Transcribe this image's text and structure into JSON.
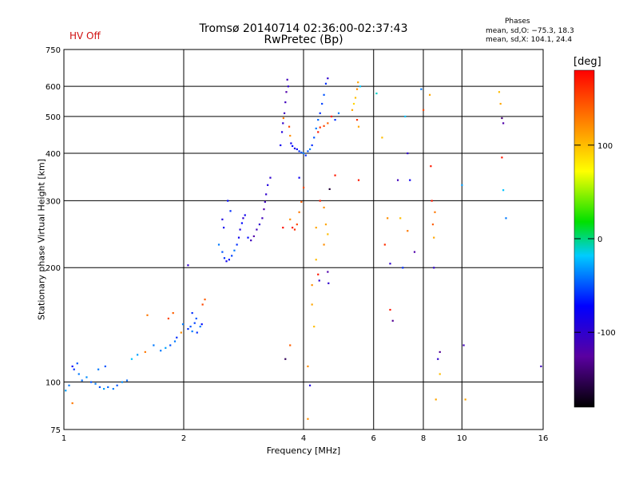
{
  "header": {
    "title_line1": "Tromsø 20140714 02:36:00-02:37:43",
    "title_line2": "RwPretec (Bp)",
    "status": "HV Off",
    "phases_heading": "Phases",
    "phases_o": "mean, sd,O: −75.3, 18.3",
    "phases_x": "mean, sd,X: 104.1, 24.4"
  },
  "colorbar": {
    "label": "[deg]",
    "ticks": [
      "100",
      "0",
      "-100"
    ],
    "tick_values": [
      100,
      0,
      -100
    ],
    "range": [
      -180,
      180
    ]
  },
  "chart_data": {
    "type": "scatter",
    "xlabel": "Frequency [MHz]",
    "ylabel": "Stationary phase Virtual Height [km]",
    "xscale": "log",
    "yscale": "log",
    "xlim": [
      1,
      16
    ],
    "ylim": [
      75,
      750
    ],
    "xticks": [
      1,
      2,
      4,
      6,
      8,
      10,
      16
    ],
    "xtick_labels": [
      "1",
      "2",
      "4",
      "6",
      "8",
      "10",
      "16"
    ],
    "yticks": [
      75,
      100,
      200,
      300,
      400,
      500,
      600,
      750
    ],
    "ytick_labels": [
      "75",
      "100",
      "200",
      "300",
      "400",
      "500",
      "600",
      "750"
    ],
    "grid": true,
    "points": [
      [
        1.01,
        95,
        -30
      ],
      [
        1.03,
        98,
        -40
      ],
      [
        1.05,
        110,
        -70
      ],
      [
        1.06,
        108,
        -60
      ],
      [
        1.08,
        112,
        -50
      ],
      [
        1.09,
        105,
        -40
      ],
      [
        1.11,
        101,
        -45
      ],
      [
        1.14,
        103,
        -35
      ],
      [
        1.17,
        100,
        -50
      ],
      [
        1.2,
        99,
        -40
      ],
      [
        1.23,
        97,
        -50
      ],
      [
        1.26,
        96,
        -30
      ],
      [
        1.29,
        97,
        -45
      ],
      [
        1.33,
        96,
        -40
      ],
      [
        1.36,
        98,
        -50
      ],
      [
        1.4,
        100,
        -35
      ],
      [
        1.44,
        101,
        -45
      ],
      [
        1.22,
        108,
        -40
      ],
      [
        1.27,
        110,
        -50
      ],
      [
        1.05,
        88,
        130
      ],
      [
        1.48,
        115,
        -20
      ],
      [
        1.53,
        118,
        -30
      ],
      [
        1.6,
        120,
        130
      ],
      [
        1.68,
        125,
        -40
      ],
      [
        1.75,
        121,
        -40
      ],
      [
        1.8,
        123,
        -30
      ],
      [
        1.85,
        125,
        -50
      ],
      [
        1.9,
        128,
        -40
      ],
      [
        1.92,
        131,
        -60
      ],
      [
        1.97,
        135,
        120
      ],
      [
        1.99,
        142,
        -40
      ],
      [
        1.62,
        150,
        130
      ],
      [
        1.83,
        147,
        150
      ],
      [
        1.88,
        152,
        140
      ],
      [
        2.05,
        138,
        -60
      ],
      [
        2.08,
        140,
        -50
      ],
      [
        2.1,
        136,
        -40
      ],
      [
        2.13,
        143,
        -55
      ],
      [
        2.15,
        147,
        -50
      ],
      [
        2.16,
        135,
        -60
      ],
      [
        2.2,
        140,
        -40
      ],
      [
        2.22,
        142,
        -70
      ],
      [
        2.1,
        152,
        -60
      ],
      [
        2.23,
        160,
        150
      ],
      [
        2.26,
        165,
        140
      ],
      [
        2.05,
        203,
        -100
      ],
      [
        2.45,
        230,
        -40
      ],
      [
        2.5,
        220,
        -50
      ],
      [
        2.53,
        212,
        -60
      ],
      [
        2.56,
        208,
        -80
      ],
      [
        2.6,
        210,
        -70
      ],
      [
        2.64,
        215,
        -55
      ],
      [
        2.68,
        222,
        -40
      ],
      [
        2.72,
        230,
        -60
      ],
      [
        2.75,
        240,
        -80
      ],
      [
        2.77,
        252,
        -90
      ],
      [
        2.8,
        262,
        -70
      ],
      [
        2.82,
        270,
        -100
      ],
      [
        2.85,
        275,
        -80
      ],
      [
        2.5,
        268,
        -90
      ],
      [
        2.52,
        255,
        -80
      ],
      [
        2.58,
        300,
        -70
      ],
      [
        2.62,
        282,
        -60
      ],
      [
        2.9,
        240,
        -70
      ],
      [
        2.95,
        236,
        -110
      ],
      [
        3.0,
        242,
        -120
      ],
      [
        3.05,
        252,
        -110
      ],
      [
        3.1,
        260,
        -100
      ],
      [
        3.15,
        270,
        -110
      ],
      [
        3.18,
        285,
        -120
      ],
      [
        3.2,
        298,
        -110
      ],
      [
        3.22,
        312,
        -100
      ],
      [
        3.25,
        330,
        -90
      ],
      [
        3.3,
        345,
        -100
      ],
      [
        3.5,
        420,
        -80
      ],
      [
        3.53,
        455,
        -90
      ],
      [
        3.55,
        480,
        -100
      ],
      [
        3.58,
        510,
        -110
      ],
      [
        3.6,
        545,
        -110
      ],
      [
        3.62,
        580,
        -120
      ],
      [
        3.64,
        625,
        -110
      ],
      [
        3.66,
        600,
        -100
      ],
      [
        3.56,
        495,
        130
      ],
      [
        3.68,
        470,
        150
      ],
      [
        3.7,
        445,
        120
      ],
      [
        3.72,
        425,
        -80
      ],
      [
        3.75,
        418,
        -70
      ],
      [
        3.8,
        412,
        -90
      ],
      [
        3.85,
        410,
        -70
      ],
      [
        3.9,
        405,
        -60
      ],
      [
        3.95,
        402,
        -50
      ],
      [
        4.0,
        400,
        -40
      ],
      [
        4.05,
        395,
        -60
      ],
      [
        4.1,
        405,
        -50
      ],
      [
        4.15,
        410,
        -40
      ],
      [
        4.2,
        420,
        -60
      ],
      [
        4.25,
        440,
        -50
      ],
      [
        4.3,
        465,
        -40
      ],
      [
        4.35,
        490,
        -45
      ],
      [
        4.4,
        510,
        -60
      ],
      [
        4.45,
        540,
        -55
      ],
      [
        4.5,
        570,
        -50
      ],
      [
        4.55,
        610,
        -60
      ],
      [
        4.6,
        630,
        -100
      ],
      [
        4.35,
        455,
        170
      ],
      [
        4.4,
        468,
        160
      ],
      [
        4.5,
        472,
        150
      ],
      [
        4.6,
        480,
        140
      ],
      [
        4.7,
        500,
        170
      ],
      [
        4.8,
        490,
        -60
      ],
      [
        4.9,
        510,
        -40
      ],
      [
        5.3,
        520,
        110
      ],
      [
        5.35,
        540,
        90
      ],
      [
        5.4,
        560,
        100
      ],
      [
        5.45,
        590,
        120
      ],
      [
        5.48,
        615,
        110
      ],
      [
        5.55,
        600,
        -20
      ],
      [
        5.45,
        490,
        160
      ],
      [
        5.5,
        470,
        110
      ],
      [
        3.75,
        255,
        170
      ],
      [
        3.8,
        252,
        160
      ],
      [
        3.85,
        260,
        150
      ],
      [
        3.9,
        280,
        130
      ],
      [
        3.95,
        298,
        140
      ],
      [
        4.0,
        325,
        150
      ],
      [
        3.55,
        255,
        175
      ],
      [
        3.7,
        268,
        120
      ],
      [
        3.9,
        345,
        -80
      ],
      [
        4.4,
        300,
        170
      ],
      [
        4.5,
        288,
        120
      ],
      [
        4.55,
        260,
        110
      ],
      [
        4.6,
        245,
        100
      ],
      [
        4.5,
        230,
        120
      ],
      [
        4.65,
        322,
        -160
      ],
      [
        4.8,
        350,
        170
      ],
      [
        4.3,
        255,
        110
      ],
      [
        4.3,
        210,
        100
      ],
      [
        4.35,
        192,
        170
      ],
      [
        4.38,
        185,
        -100
      ],
      [
        4.6,
        195,
        -120
      ],
      [
        4.62,
        182,
        -100
      ],
      [
        6.1,
        575,
        -10
      ],
      [
        6.3,
        440,
        100
      ],
      [
        6.4,
        230,
        160
      ],
      [
        6.6,
        205,
        -100
      ],
      [
        6.5,
        270,
        120
      ],
      [
        6.6,
        155,
        170
      ],
      [
        6.7,
        145,
        -130
      ],
      [
        6.9,
        340,
        -110
      ],
      [
        7.0,
        270,
        100
      ],
      [
        7.1,
        200,
        -60
      ],
      [
        7.2,
        500,
        -20
      ],
      [
        7.3,
        400,
        -100
      ],
      [
        7.4,
        340,
        -80
      ],
      [
        7.3,
        250,
        130
      ],
      [
        7.6,
        220,
        -120
      ],
      [
        7.9,
        590,
        -40
      ],
      [
        8.0,
        520,
        150
      ],
      [
        8.3,
        570,
        110
      ],
      [
        8.35,
        370,
        170
      ],
      [
        8.4,
        300,
        170
      ],
      [
        8.45,
        260,
        140
      ],
      [
        8.5,
        240,
        110
      ],
      [
        8.55,
        280,
        130
      ],
      [
        8.5,
        200,
        -100
      ],
      [
        8.8,
        120,
        -130
      ],
      [
        8.7,
        115,
        -100
      ],
      [
        8.6,
        90,
        110
      ],
      [
        8.8,
        105,
        100
      ],
      [
        10.0,
        330,
        -30
      ],
      [
        10.1,
        125,
        -110
      ],
      [
        10.2,
        90,
        110
      ],
      [
        12.4,
        580,
        100
      ],
      [
        12.5,
        540,
        110
      ],
      [
        12.6,
        390,
        170
      ],
      [
        12.6,
        495,
        -140
      ],
      [
        12.7,
        480,
        -120
      ],
      [
        12.7,
        320,
        -20
      ],
      [
        12.9,
        270,
        -40
      ],
      [
        15.8,
        110,
        -110
      ],
      [
        5.5,
        340,
        170
      ],
      [
        4.2,
        180,
        120
      ],
      [
        4.2,
        160,
        110
      ],
      [
        4.25,
        140,
        100
      ],
      [
        4.1,
        110,
        120
      ],
      [
        4.15,
        98,
        -90
      ],
      [
        4.1,
        80,
        120
      ],
      [
        3.6,
        115,
        -150
      ],
      [
        3.7,
        125,
        140
      ]
    ]
  }
}
